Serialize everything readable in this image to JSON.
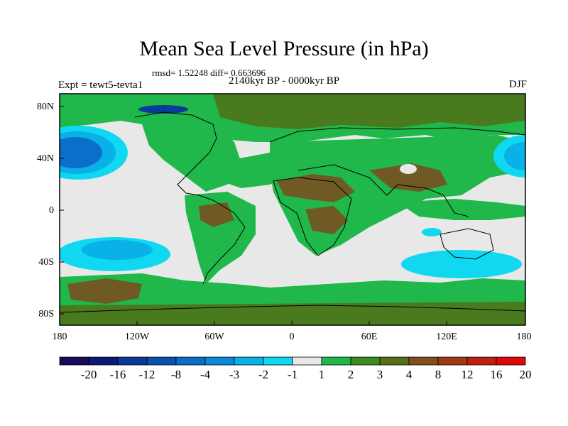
{
  "title": "Mean Sea Level Pressure (in hPa)",
  "stats": "rmsd= 1.52248 diff= 0.663696",
  "period": "2140kyr BP - 0000kyr BP",
  "experiment": "Expt = tewt5-tevta1",
  "season": "DJF",
  "lat_labels": [
    "80N",
    "40N",
    "0",
    "40S",
    "80S"
  ],
  "lon_labels": [
    "180",
    "120W",
    "60W",
    "0",
    "60E",
    "120E",
    "180"
  ],
  "colorbar": {
    "labels": [
      "-20",
      "-16",
      "-12",
      "-8",
      "-4",
      "-3",
      "-2",
      "-1",
      "1",
      "2",
      "3",
      "4",
      "8",
      "12",
      "16",
      "20"
    ],
    "colors": [
      "#1a0a5c",
      "#0a1a7a",
      "#0a3a9a",
      "#0a50b0",
      "#0a6fc8",
      "#0a8ad8",
      "#0ab0e8",
      "#10d8f0",
      "#e8e8e8",
      "#20b84a",
      "#3c8a20",
      "#5a6e18",
      "#80501e",
      "#a03a14",
      "#c0200e",
      "#e00808"
    ]
  },
  "palette": {
    "neutral": "#e8e8e8",
    "green": "#20b84a",
    "darkgreen": "#4a7a1e",
    "olive": "#6e5a22",
    "cyan": "#10d8f0",
    "lightblue": "#0ab0e8",
    "blue": "#0a6fc8",
    "navy": "#0a3a9a"
  }
}
